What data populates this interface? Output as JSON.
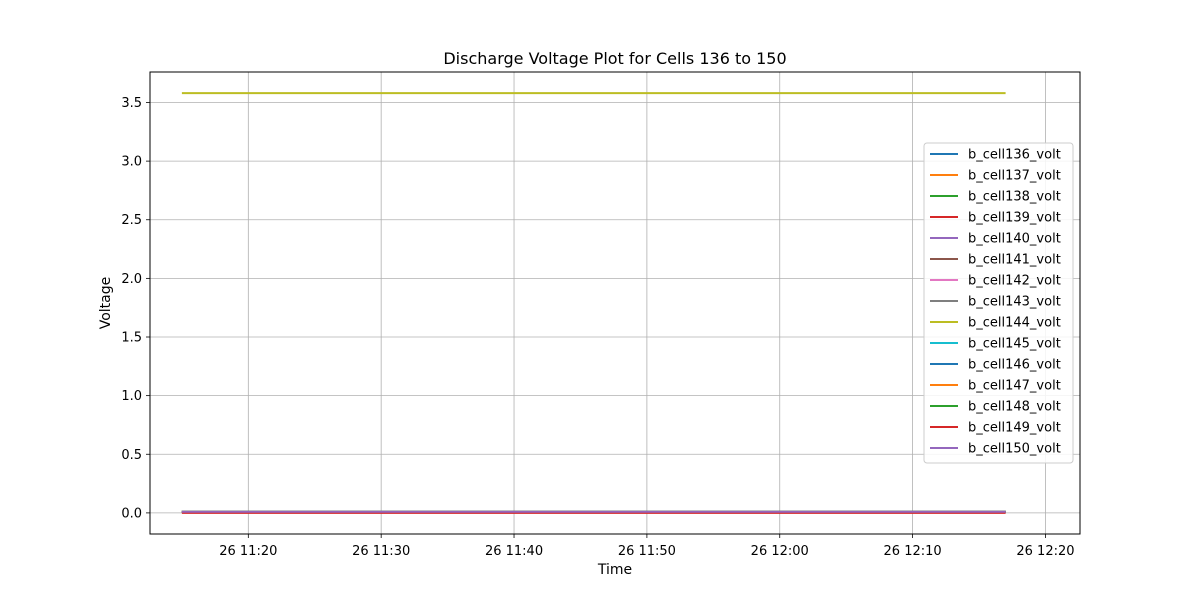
{
  "chart_data": {
    "type": "line",
    "title": "Discharge Voltage Plot for Cells 136 to 150",
    "xlabel": "Time",
    "ylabel": "Voltage",
    "x_start": "26 11:15",
    "x_end": "26 12:17",
    "x_ticks": [
      "26 11:20",
      "26 11:30",
      "26 11:40",
      "26 11:50",
      "26 12:00",
      "26 12:10",
      "26 12:20"
    ],
    "x_tick_minutes": [
      20,
      30,
      40,
      50,
      60,
      70,
      80
    ],
    "xlim_minutes": [
      12.6,
      82.6
    ],
    "y_ticks": [
      "0.0",
      "0.5",
      "1.0",
      "1.5",
      "2.0",
      "2.5",
      "3.0",
      "3.5"
    ],
    "y_tick_values": [
      0,
      0.5,
      1,
      1.5,
      2,
      2.5,
      3,
      3.5
    ],
    "ylim": [
      -0.18,
      3.76
    ],
    "grid": true,
    "legend_position": "center-right",
    "series": [
      {
        "name": "b_cell136_volt",
        "color": "#1f77b4",
        "value": 0.01
      },
      {
        "name": "b_cell137_volt",
        "color": "#ff7f0e",
        "value": 0.01
      },
      {
        "name": "b_cell138_volt",
        "color": "#2ca02c",
        "value": 0.01
      },
      {
        "name": "b_cell139_volt",
        "color": "#d62728",
        "value": 0.01
      },
      {
        "name": "b_cell140_volt",
        "color": "#9467bd",
        "value": 0.01
      },
      {
        "name": "b_cell141_volt",
        "color": "#8c564b",
        "value": 0.01
      },
      {
        "name": "b_cell142_volt",
        "color": "#e377c2",
        "value": 0.01
      },
      {
        "name": "b_cell143_volt",
        "color": "#7f7f7f",
        "value": 0.01
      },
      {
        "name": "b_cell144_volt",
        "color": "#bcbd22",
        "value": 3.58
      },
      {
        "name": "b_cell145_volt",
        "color": "#17becf",
        "value": 0.01
      },
      {
        "name": "b_cell146_volt",
        "color": "#1f77b4",
        "value": 0.01
      },
      {
        "name": "b_cell147_volt",
        "color": "#ff7f0e",
        "value": 0.01
      },
      {
        "name": "b_cell148_volt",
        "color": "#2ca02c",
        "value": 0.01
      },
      {
        "name": "b_cell149_volt",
        "color": "#d62728",
        "value": 0.0
      },
      {
        "name": "b_cell150_volt",
        "color": "#9467bd",
        "value": 0.01
      }
    ]
  }
}
